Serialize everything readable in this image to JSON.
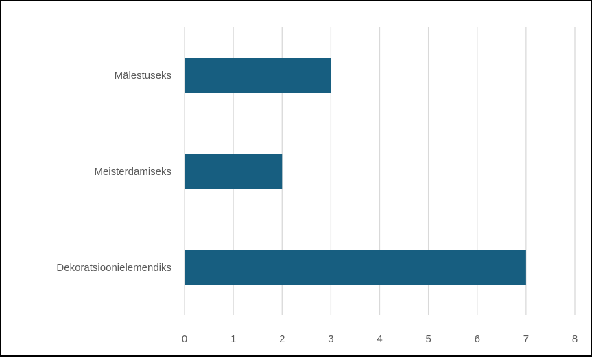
{
  "chart_data": {
    "type": "bar",
    "orientation": "horizontal",
    "categories": [
      "Mälestuseks",
      "Meisterdamiseks",
      "Dekoratsioonielemendiks"
    ],
    "values": [
      3,
      2,
      7
    ],
    "title": "",
    "xlabel": "",
    "ylabel": "",
    "xlim": [
      0,
      8
    ],
    "xticks": [
      "0",
      "1",
      "2",
      "3",
      "4",
      "5",
      "6",
      "7",
      "8"
    ],
    "grid": "vertical",
    "legend": "none",
    "colors": {
      "bar": "#175E80",
      "grid": "#D9D9D9",
      "text": "#595959"
    }
  }
}
